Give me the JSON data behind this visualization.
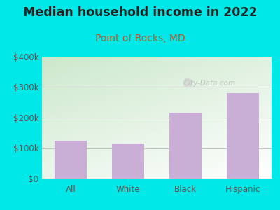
{
  "title": "Median household income in 2022",
  "subtitle": "Point of Rocks, MD",
  "categories": [
    "All",
    "White",
    "Black",
    "Hispanic"
  ],
  "values": [
    125000,
    115000,
    215000,
    280000
  ],
  "bar_color": "#c9aed6",
  "background_color": "#00e8e8",
  "plot_bg_top_left": "#cce8cc",
  "plot_bg_bottom_right": "#ffffff",
  "title_fontsize": 12.5,
  "subtitle_fontsize": 10,
  "subtitle_color": "#b05a28",
  "tick_color": "#555555",
  "ylim": [
    0,
    400000
  ],
  "yticks": [
    0,
    100000,
    200000,
    300000,
    400000
  ],
  "ytick_labels": [
    "$0",
    "$100k",
    "$200k",
    "$300k",
    "$400k"
  ],
  "watermark": "City-Data.com"
}
